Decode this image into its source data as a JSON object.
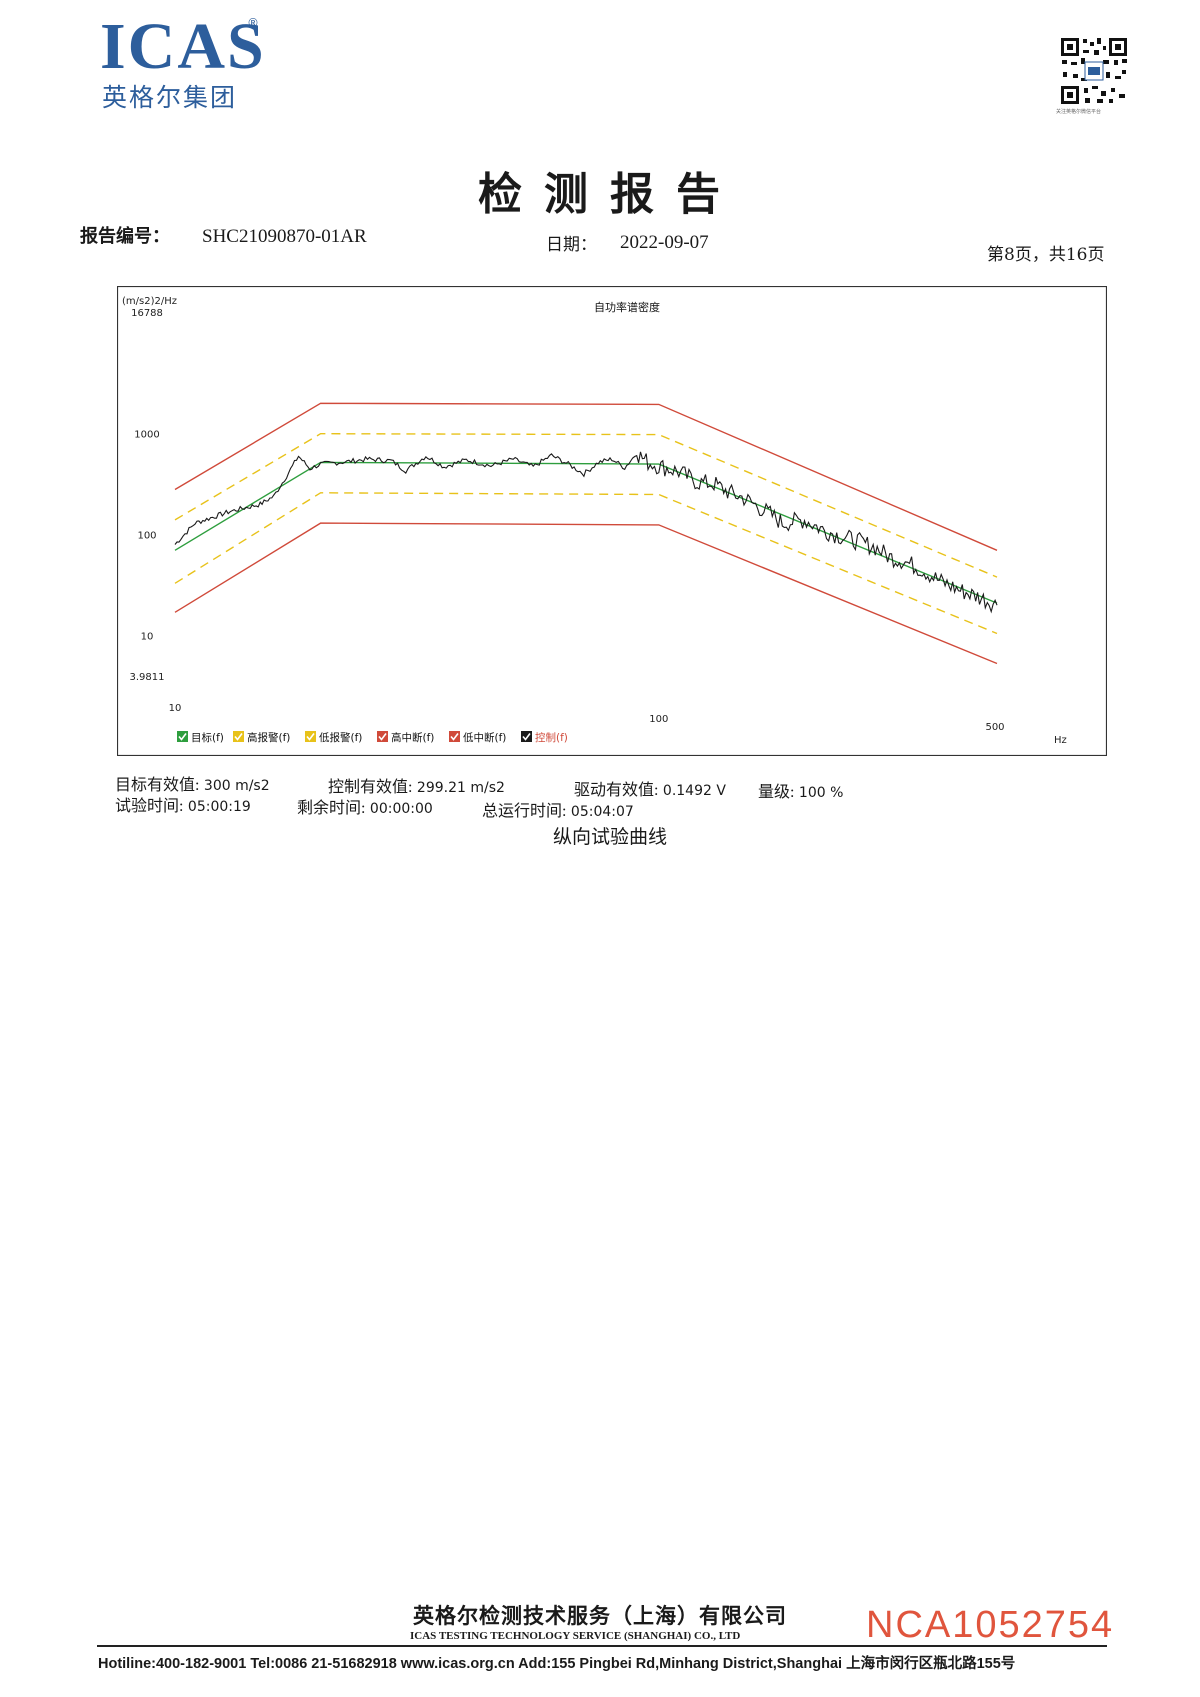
{
  "header": {
    "logo_text": "ICAS",
    "logo_reg": "®",
    "logo_cn": "英格尔集团",
    "qr_caption": "关注英格尔微信平台"
  },
  "title": "检测报告",
  "meta": {
    "report_no_label": "报告编号：",
    "report_no": "SHC21090870-01AR",
    "date_label": "日期：",
    "date": "2022-09-07",
    "page_info": "第8页，共16页"
  },
  "chart_data": {
    "type": "line",
    "title": "自功率谱密度",
    "ylabel": "(m/s2)2/Hz",
    "xlabel": "Hz",
    "x_scale": "log",
    "y_scale": "log",
    "xlim": [
      10,
      500
    ],
    "ylim": [
      3.9811,
      16788
    ],
    "y_ticks": [
      "16788",
      "1000",
      "100",
      "10",
      "3.9811"
    ],
    "x_ticks": [
      "10",
      "100",
      "500"
    ],
    "legend": [
      {
        "label": "目标(f)",
        "color": "#2e9e3e"
      },
      {
        "label": "高报警(f)",
        "color": "#e8c21a"
      },
      {
        "label": "低报警(f)",
        "color": "#e8c21a"
      },
      {
        "label": "高中断(f)",
        "color": "#d04a3a"
      },
      {
        "label": "低中断(f)",
        "color": "#d04a3a"
      },
      {
        "label": "控制(f)",
        "color": "#1a1a1a"
      }
    ],
    "series": [
      {
        "name": "目标(f)",
        "color": "#2e9e3e",
        "style": "solid",
        "x": [
          10,
          20,
          100,
          500
        ],
        "y": [
          70,
          520,
          500,
          21
        ]
      },
      {
        "name": "高报警(f)",
        "color": "#e8c21a",
        "style": "dashed",
        "x": [
          10,
          20,
          100,
          500
        ],
        "y": [
          140,
          1000,
          980,
          38
        ]
      },
      {
        "name": "低报警(f)",
        "color": "#e8c21a",
        "style": "dashed",
        "x": [
          10,
          20,
          100,
          500
        ],
        "y": [
          33,
          260,
          250,
          10.5
        ]
      },
      {
        "name": "高中断(f)",
        "color": "#d04a3a",
        "style": "solid",
        "x": [
          10,
          20,
          100,
          500
        ],
        "y": [
          280,
          2000,
          1950,
          70
        ]
      },
      {
        "name": "低中断(f)",
        "color": "#d04a3a",
        "style": "solid",
        "x": [
          10,
          20,
          100,
          500
        ],
        "y": [
          17,
          130,
          125,
          5.3
        ]
      },
      {
        "name": "控制(f)",
        "color": "#1a1a1a",
        "style": "solid",
        "x": [
          10,
          11,
          13,
          15,
          16,
          17,
          18,
          19,
          20,
          22,
          25,
          28,
          30,
          33,
          36,
          40,
          45,
          50,
          55,
          60,
          65,
          70,
          75,
          80,
          85,
          90,
          95,
          100,
          110,
          120,
          130,
          140,
          150,
          160,
          170,
          180,
          200,
          220,
          240,
          260,
          280,
          300,
          320,
          350,
          380,
          420,
          460,
          500
        ],
        "y": [
          80,
          130,
          170,
          200,
          240,
          380,
          600,
          450,
          500,
          520,
          560,
          540,
          430,
          600,
          470,
          550,
          480,
          560,
          470,
          610,
          500,
          400,
          520,
          560,
          460,
          640,
          520,
          480,
          420,
          330,
          320,
          260,
          230,
          190,
          160,
          130,
          140,
          110,
          95,
          85,
          75,
          60,
          55,
          45,
          35,
          28,
          24,
          20
        ]
      }
    ]
  },
  "stats": {
    "target_rms_label": "目标有效值:",
    "target_rms": "300 m/s2",
    "control_rms_label": "控制有效值:",
    "control_rms": "299.21 m/s2",
    "drive_rms_label": "驱动有效值:",
    "drive_rms": "0.1492 V",
    "level_label": "量级:",
    "level": "100 %",
    "test_time_label": "试验时间:",
    "test_time": "05:00:19",
    "remaining_label": "剩余时间:",
    "remaining": "00:00:00",
    "total_label": "总运行时间:",
    "total": "05:04:07"
  },
  "caption": "纵向试验曲线",
  "footer": {
    "company_cn": "英格尔检测技术服务（上海）有限公司",
    "company_en": "ICAS TESTING TECHNOLOGY SERVICE (SHANGHAI) CO., LTD",
    "contact": "Hotiline:400-182-9001  Tel:0086 21-51682918  www.icas.org.cn  Add:155 Pingbei Rd,Minhang District,Shanghai 上海市闵行区瓶北路155号",
    "serial": "NCA1052754"
  }
}
